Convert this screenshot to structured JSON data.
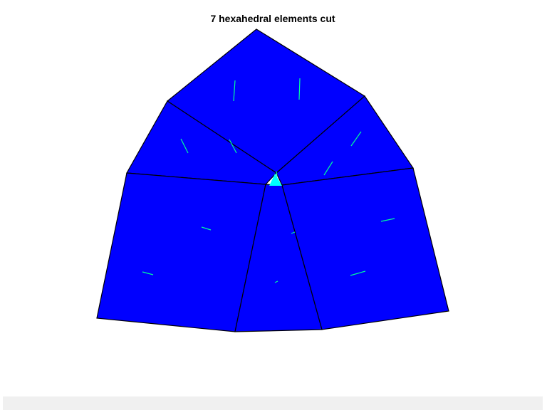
{
  "figure": {
    "title": "7 hexahedral elements cut",
    "colors": {
      "face_fill": "#0000ff",
      "edge": "#000000",
      "vector": "#00ff99",
      "cut_marker": "#00ffff",
      "background": "#ffffff",
      "bottom_bar": "#f0f0f0"
    },
    "element_count": 7,
    "icons": {
      "cut_marker": "triangle-marker"
    }
  }
}
